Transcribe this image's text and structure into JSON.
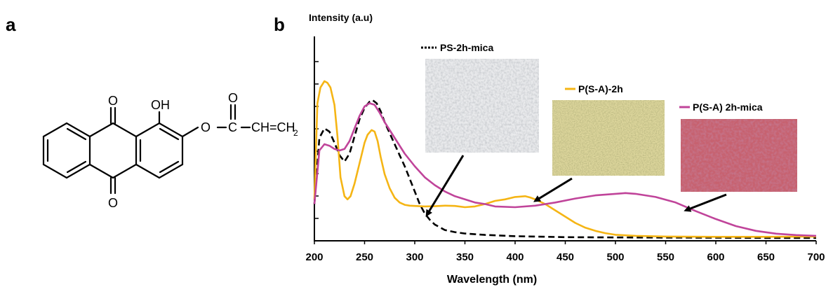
{
  "panels": {
    "a": "a",
    "b": "b"
  },
  "structure": {
    "ketone_top": "O",
    "ketone_bottom": "O",
    "hydroxyl": "OH",
    "ester_o": "O",
    "carbonyl_o": "O",
    "carbon": "C",
    "vinyl": "CH=CH",
    "vinyl_sub": "2"
  },
  "chart_data": {
    "type": "line",
    "ylabel": "Intensity (a.u)",
    "xlabel": "Wavelength (nm)",
    "xlim": [
      200,
      700
    ],
    "ylim": [
      0,
      10
    ],
    "x_ticks": [
      "200",
      "250",
      "300",
      "350",
      "400",
      "450",
      "500",
      "550",
      "600",
      "650",
      "700"
    ],
    "y_tick_count": 9,
    "y_tick_labels": "none",
    "grid": false,
    "colors": {
      "dashed": "#000000",
      "yellow": "#f5b515",
      "magenta": "#c0449a"
    },
    "series": [
      {
        "name": "PS-2h-mica",
        "style": "dashed",
        "color": "#000000",
        "x": [
          200,
          205,
          210,
          215,
          220,
          225,
          230,
          235,
          240,
          245,
          250,
          255,
          258,
          262,
          266,
          270,
          275,
          280,
          285,
          290,
          295,
          300,
          305,
          310,
          315,
          320,
          330,
          340,
          350,
          370,
          400,
          450,
          500,
          550,
          600,
          650,
          700
        ],
        "y": [
          2.2,
          6.4,
          7.0,
          6.8,
          6.1,
          5.3,
          4.9,
          5.4,
          6.5,
          7.6,
          8.3,
          8.7,
          8.8,
          8.6,
          8.1,
          7.4,
          6.7,
          6.0,
          5.3,
          4.6,
          3.8,
          3.0,
          2.2,
          1.6,
          1.2,
          0.9,
          0.55,
          0.42,
          0.33,
          0.24,
          0.16,
          0.1,
          0.08,
          0.07,
          0.06,
          0.05,
          0.05
        ]
      },
      {
        "name": "P(S-A)-2h",
        "style": "solid",
        "color": "#f5b515",
        "x": [
          200,
          203,
          206,
          210,
          213,
          216,
          220,
          223,
          226,
          230,
          233,
          236,
          240,
          245,
          250,
          253,
          257,
          260,
          263,
          266,
          270,
          275,
          280,
          285,
          290,
          295,
          300,
          310,
          320,
          330,
          340,
          350,
          360,
          370,
          380,
          390,
          400,
          410,
          415,
          420,
          430,
          440,
          450,
          460,
          470,
          480,
          490,
          500,
          520,
          550,
          600,
          650,
          700
        ],
        "y": [
          2.5,
          8.6,
          9.6,
          10.0,
          9.9,
          9.6,
          8.5,
          6.5,
          3.9,
          2.7,
          2.5,
          2.7,
          3.5,
          4.8,
          6.1,
          6.6,
          6.9,
          6.8,
          6.2,
          5.2,
          4.1,
          3.2,
          2.6,
          2.3,
          2.15,
          2.1,
          2.08,
          2.05,
          2.06,
          2.1,
          2.08,
          2.0,
          2.05,
          2.2,
          2.4,
          2.5,
          2.65,
          2.7,
          2.62,
          2.5,
          2.2,
          1.8,
          1.4,
          1.0,
          0.7,
          0.5,
          0.35,
          0.25,
          0.18,
          0.14,
          0.12,
          0.12,
          0.14
        ]
      },
      {
        "name": "P(S-A) 2h-mica",
        "style": "solid",
        "color": "#c0449a",
        "x": [
          200,
          205,
          210,
          215,
          220,
          225,
          230,
          235,
          240,
          245,
          250,
          255,
          260,
          265,
          270,
          280,
          290,
          300,
          310,
          320,
          330,
          340,
          350,
          360,
          370,
          380,
          400,
          420,
          440,
          460,
          480,
          500,
          510,
          520,
          540,
          560,
          580,
          600,
          620,
          640,
          660,
          680,
          700
        ],
        "y": [
          2.2,
          5.6,
          6.0,
          5.9,
          5.7,
          5.6,
          5.7,
          6.2,
          7.0,
          7.8,
          8.4,
          8.6,
          8.5,
          8.0,
          7.4,
          6.4,
          5.4,
          4.6,
          3.9,
          3.4,
          3.0,
          2.7,
          2.5,
          2.3,
          2.2,
          2.05,
          2.0,
          2.1,
          2.3,
          2.55,
          2.75,
          2.85,
          2.9,
          2.85,
          2.65,
          2.3,
          1.75,
          1.25,
          0.8,
          0.5,
          0.32,
          0.23,
          0.18
        ]
      }
    ],
    "insets": [
      {
        "legend": "PS-2h-mica",
        "swatch": "#c9cccf",
        "arrow_to": [
          312,
          1.5
        ]
      },
      {
        "legend": "P(S-A)-2h",
        "swatch": "#c8c38a",
        "arrow_to": [
          420,
          2.4
        ]
      },
      {
        "legend": "P(S-A) 2h-mica",
        "swatch": "#b84f6a",
        "arrow_to": [
          570,
          1.8
        ]
      }
    ]
  }
}
